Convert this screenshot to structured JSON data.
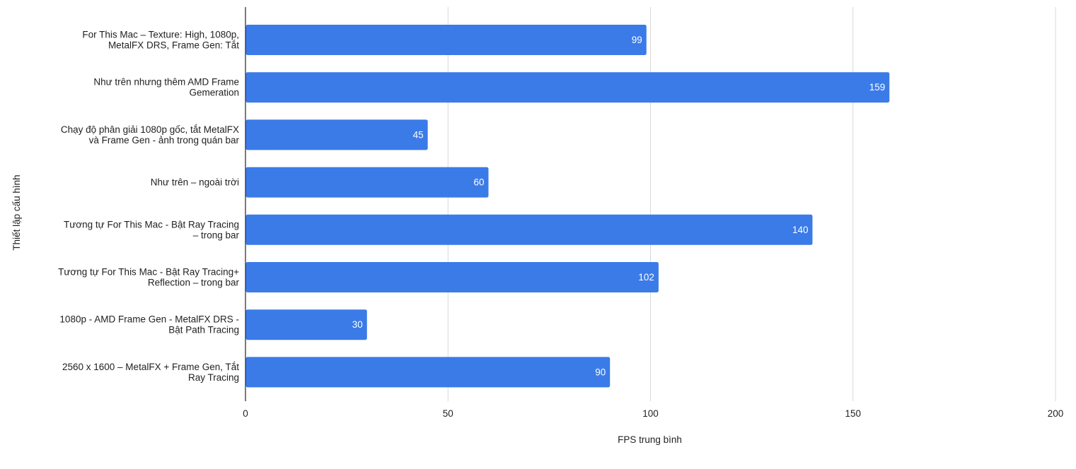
{
  "chart_data": {
    "type": "bar",
    "orientation": "horizontal",
    "title": "",
    "xlabel": "FPS trung bình",
    "ylabel": "Thiết lập cấu hình",
    "xlim": [
      0,
      200
    ],
    "xticks": [
      0,
      50,
      100,
      150,
      200
    ],
    "grid": true,
    "legend": "none",
    "bar_color": "#3b7be8",
    "categories": [
      [
        "For This Mac – Texture: High, 1080p,",
        "MetalFX DRS, Frame Gen: Tắt"
      ],
      [
        "Như trên nhưng thêm AMD Frame",
        "Gemeration"
      ],
      [
        "Chạy độ phân giải 1080p gốc, tắt MetalFX",
        "và Frame Gen - ảnh trong quán bar"
      ],
      [
        "Như trên – ngoài trời"
      ],
      [
        "Tương tự For This Mac - Bật Ray Tracing",
        "– trong bar"
      ],
      [
        "Tương tự For This Mac - Bật Ray Tracing+",
        "Reflection  – trong bar"
      ],
      [
        "1080p - AMD Frame Gen - MetalFX DRS -",
        "Bật Path Tracing"
      ],
      [
        "2560 x 1600 – MetalFX + Frame Gen, Tắt",
        "Ray Tracing"
      ]
    ],
    "values": [
      99,
      159,
      45,
      60,
      140,
      102,
      30,
      90
    ]
  }
}
